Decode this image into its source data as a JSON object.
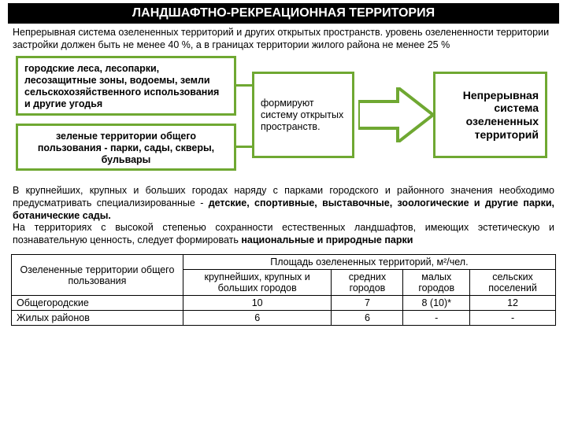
{
  "colors": {
    "title_bg": "#000000",
    "title_fg": "#ffffff",
    "accent": "#6fa832",
    "text": "#000000",
    "page_bg": "#ffffff"
  },
  "title": "ЛАНДШАФТНО-РЕКРЕАЦИОННАЯ ТЕРРИТОРИЯ",
  "intro": "Непрерывная система озелененных территорий и других открытых пространств. уровень озелененности территории застройки должен быть не менее 40 %, а в границах территории жилого района не менее 25 %",
  "diagram": {
    "left_top": "городские леса, лесопарки, лесозащитные зоны, водоемы, земли сельскохозяйственного использования и другие угодья",
    "left_bottom": "зеленые территории общего пользования - парки, сады, скверы, бульвары",
    "middle": "формируют систему открытых пространств.",
    "right": "Непрерывная система озелененных территорий",
    "arrow_color": "#6fa832",
    "box_border_color": "#6fa832",
    "box_border_width": 3
  },
  "paragraph": "В крупнейших, крупных и больших городах наряду с парками городского и районного значения необходимо предусматривать специализированные - детские, спортивные, выставочные, зоологические и другие парки, ботанические сады.\nНа территориях с высокой степенью сохранности естественных ландшафтов, имеющих эстетическую и познавательную ценность, следует формировать национальные и природные парки",
  "table": {
    "super_header_left": "Озелененные территории общего пользования",
    "super_header_right": "Площадь озелененных территорий, м²/чел.",
    "columns": [
      "крупнейших, крупных и больших городов",
      "средних городов",
      "малых городов",
      "сельских поселений"
    ],
    "rows": [
      {
        "label": "Общегородские",
        "cells": [
          "10",
          "7",
          "8 (10)*",
          "12"
        ]
      },
      {
        "label": "Жилых районов",
        "cells": [
          "6",
          "6",
          "-",
          "-"
        ]
      }
    ]
  }
}
